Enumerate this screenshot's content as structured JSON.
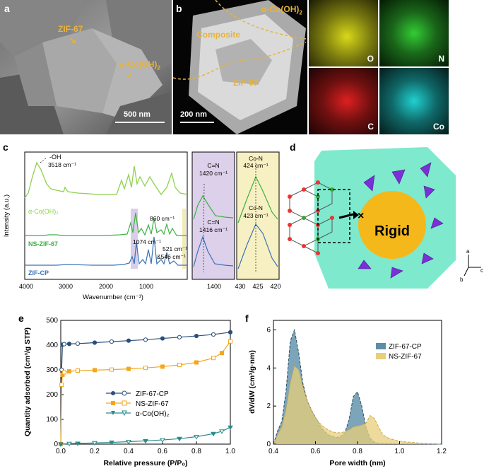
{
  "panel_a": {
    "label": "a",
    "zif": "ZIF-67",
    "alpha": "α-Co(OH)",
    "alpha_sub": "2",
    "scale": "500 nm"
  },
  "panel_b": {
    "label": "b",
    "alpha": "α-Co(OH)",
    "alpha_sub": "2",
    "composite": "Composite",
    "zif": "ZIF-67",
    "scale": "200 nm",
    "maps": [
      {
        "element": "O",
        "color": "#ffff33"
      },
      {
        "element": "N",
        "color": "#33ff33"
      },
      {
        "element": "C",
        "color": "#ff2222"
      },
      {
        "element": "Co",
        "color": "#22e5e5"
      }
    ]
  },
  "panel_c": {
    "label": "c",
    "ylabel": "Intensity (a.u.)",
    "xlabel": "Wavenumber (cm⁻¹)",
    "xticks": [
      "4000",
      "3000",
      "2000",
      "1000"
    ],
    "zoom1_ticks": [
      "1400"
    ],
    "zoom2_ticks": [
      "430",
      "425",
      "420"
    ],
    "series": [
      {
        "name": "α-Co(OH)₂",
        "color": "#8fd14f"
      },
      {
        "name": "NS-ZIF-67",
        "color": "#3cb043"
      },
      {
        "name": "ZIF-CP",
        "color": "#3a72b8"
      }
    ],
    "annotations": {
      "oh": "-OH",
      "oh_val": "3518 cm⁻¹",
      "p860": "860 cm⁻¹",
      "p1074": "1074 cm⁻¹",
      "p521": "521 cm⁻¹",
      "p546": "&546 cm⁻¹",
      "cn1": "C=N",
      "cn1_val": "1420 cm⁻¹",
      "cn2": "C=N",
      "cn2_val": "1416 cm⁻¹",
      "con1": "Co-N",
      "con1_val": "424 cm⁻¹",
      "con2": "Co-N",
      "con2_val": "423 cm⁻¹"
    }
  },
  "panel_d": {
    "label": "d",
    "rigid": "Rigid",
    "axes": {
      "a": "a",
      "b": "b",
      "c": "c"
    }
  },
  "panel_e": {
    "label": "e",
    "chart_data": {
      "type": "line",
      "xlabel": "Relative pressure (P/P₀)",
      "ylabel": "Quantity adsorbed (cm³/g STP)",
      "xlim": [
        0,
        1
      ],
      "ylim": [
        0,
        500
      ],
      "xticks": [
        "0.0",
        "0.2",
        "0.4",
        "0.6",
        "0.8",
        "1.0"
      ],
      "yticks": [
        "0",
        "100",
        "200",
        "300",
        "400",
        "500"
      ],
      "series": [
        {
          "name": "ZIF-67-CP",
          "color": "#2a4f7a",
          "x": [
            0,
            0.005,
            0.01,
            0.02,
            0.05,
            0.1,
            0.2,
            0.3,
            0.4,
            0.5,
            0.6,
            0.7,
            0.8,
            0.9,
            1.0
          ],
          "y": [
            0,
            300,
            402,
            404,
            405,
            406,
            410,
            414,
            418,
            422,
            427,
            432,
            437,
            443,
            452
          ]
        },
        {
          "name": "NS-ZIF-67",
          "color": "#f2a71c",
          "x": [
            0,
            0.005,
            0.01,
            0.02,
            0.05,
            0.1,
            0.2,
            0.3,
            0.4,
            0.5,
            0.6,
            0.7,
            0.8,
            0.9,
            0.95,
            1.0
          ],
          "y": [
            0,
            240,
            280,
            290,
            294,
            297,
            299,
            301,
            304,
            308,
            313,
            320,
            330,
            348,
            368,
            415
          ]
        },
        {
          "name": "α-Co(OH)₂",
          "color": "#2a8c8c",
          "x": [
            0,
            0.05,
            0.1,
            0.2,
            0.3,
            0.4,
            0.5,
            0.6,
            0.7,
            0.8,
            0.9,
            0.95,
            1.0
          ],
          "y": [
            0,
            2,
            3,
            5,
            7,
            10,
            13,
            17,
            22,
            30,
            42,
            52,
            68
          ]
        }
      ]
    }
  },
  "panel_f": {
    "label": "f",
    "chart_data": {
      "type": "area",
      "xlabel": "Pore width (nm)",
      "ylabel": "dV/dW (cm³/g·nm)",
      "xlim": [
        0.4,
        1.2
      ],
      "ylim": [
        0,
        6.5
      ],
      "xticks": [
        "0.4",
        "0.6",
        "0.8",
        "1.0",
        "1.2"
      ],
      "yticks": [
        "0",
        "2",
        "4",
        "6"
      ],
      "series": [
        {
          "name": "ZIF-67-CP",
          "color": "#5b8fa8",
          "x": [
            0.4,
            0.42,
            0.44,
            0.46,
            0.48,
            0.5,
            0.52,
            0.54,
            0.56,
            0.58,
            0.6,
            0.62,
            0.64,
            0.66,
            0.68,
            0.7,
            0.72,
            0.74,
            0.76,
            0.78,
            0.8,
            0.82,
            0.84,
            0.86,
            0.88,
            0.9,
            0.95,
            1.0,
            1.1,
            1.2
          ],
          "y": [
            0.0,
            0.7,
            1.2,
            2.8,
            5.4,
            6.0,
            4.8,
            3.2,
            2.3,
            1.8,
            1.4,
            1.0,
            0.7,
            0.5,
            0.4,
            0.35,
            0.4,
            0.6,
            1.3,
            2.5,
            2.75,
            2.0,
            0.9,
            0.3,
            0.1,
            0.05,
            0.03,
            0.02,
            0.01,
            0.0
          ]
        },
        {
          "name": "NS-ZIF-67",
          "color": "#e8cf7a",
          "x": [
            0.4,
            0.42,
            0.44,
            0.46,
            0.48,
            0.5,
            0.52,
            0.54,
            0.56,
            0.58,
            0.6,
            0.62,
            0.64,
            0.66,
            0.68,
            0.7,
            0.72,
            0.74,
            0.76,
            0.78,
            0.8,
            0.82,
            0.84,
            0.86,
            0.88,
            0.9,
            0.92,
            0.95,
            1.0,
            1.1,
            1.2
          ],
          "y": [
            0.0,
            0.5,
            0.9,
            1.8,
            3.2,
            4.1,
            3.9,
            3.0,
            2.3,
            1.8,
            1.4,
            1.1,
            0.9,
            0.75,
            0.65,
            0.6,
            0.6,
            0.65,
            0.75,
            0.9,
            0.95,
            1.0,
            1.1,
            1.5,
            1.35,
            0.9,
            0.5,
            0.3,
            0.15,
            0.05,
            0.0
          ]
        }
      ]
    }
  }
}
